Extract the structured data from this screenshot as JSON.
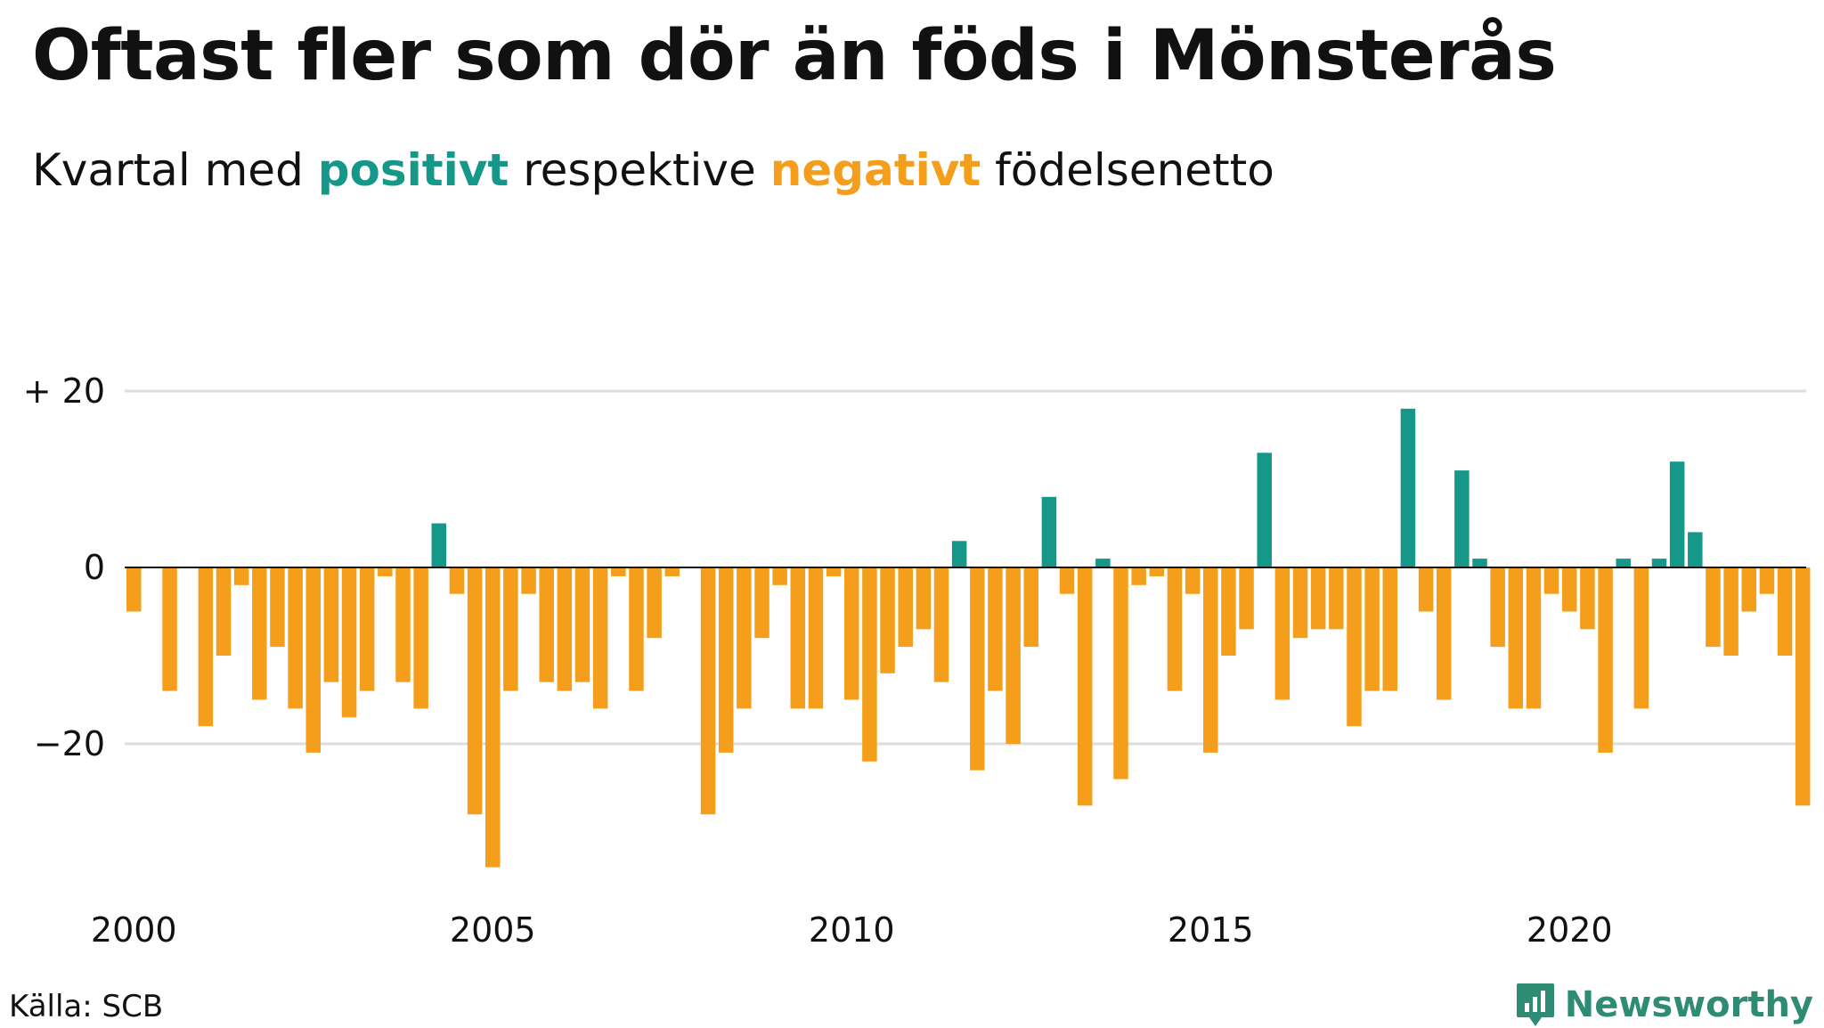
{
  "title": "Oftast fler som dör än föds i Mönsterås",
  "subtitle": {
    "prefix": "Kvartal med",
    "positive": "positivt",
    "middle": "respektive",
    "negative": "negativt",
    "suffix": "födelsenetto"
  },
  "source": "Källa: SCB",
  "brand": "Newsworthy",
  "colors": {
    "positive": "#15978a",
    "negative": "#f59e1b",
    "grid": "#dddddd",
    "zero": "#111111"
  },
  "chart_data": {
    "type": "bar",
    "x_start": "2000 Q1",
    "frequency": "quarter",
    "values": [
      -5,
      0,
      -14,
      0,
      -18,
      -10,
      -2,
      -15,
      -9,
      -16,
      -21,
      -13,
      -17,
      -14,
      -1,
      -13,
      -16,
      5,
      -3,
      -28,
      -34,
      -14,
      -3,
      -13,
      -14,
      -13,
      -16,
      -1,
      -14,
      -8,
      -1,
      0,
      -28,
      -21,
      -16,
      -8,
      -2,
      -16,
      -16,
      -1,
      -15,
      -22,
      -12,
      -9,
      -7,
      -13,
      3,
      -23,
      -14,
      -20,
      -9,
      8,
      -3,
      -27,
      1,
      -24,
      -2,
      -1,
      -14,
      -3,
      -21,
      -10,
      -7,
      13,
      -15,
      -8,
      -7,
      -7,
      -18,
      -14,
      -14,
      18,
      -5,
      -15,
      11,
      1,
      -9,
      -16,
      -16,
      -3,
      -5,
      -7,
      -21,
      1,
      -16,
      1,
      12,
      4,
      -9,
      -10,
      -5,
      -3,
      -10,
      -27
    ],
    "xticks": [
      {
        "label": "2000",
        "year": 2000
      },
      {
        "label": "2005",
        "year": 2005
      },
      {
        "label": "2010",
        "year": 2010
      },
      {
        "label": "2015",
        "year": 2015
      },
      {
        "label": "2020",
        "year": 2020
      }
    ],
    "yticks": [
      {
        "label": "+ 20",
        "value": 20
      },
      {
        "label": "0",
        "value": 0
      },
      {
        "label": "−20",
        "value": -20
      }
    ],
    "ylim": [
      -36,
      20
    ],
    "grid": true
  }
}
